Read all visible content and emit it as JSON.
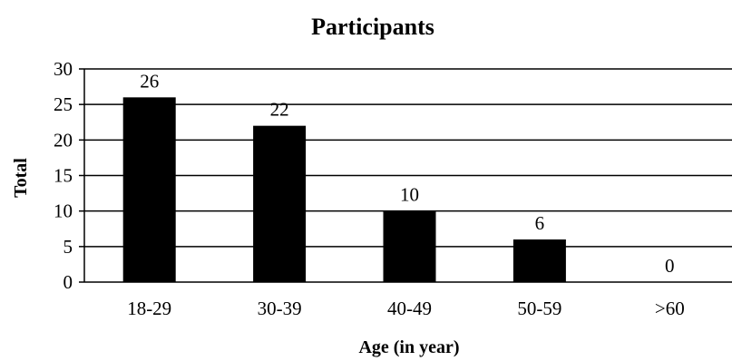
{
  "chart_data": {
    "type": "bar",
    "title": "Participants",
    "xlabel": "Age (in year)",
    "ylabel": "Total",
    "categories": [
      "18-29",
      "30-39",
      "40-49",
      "50-59",
      ">60"
    ],
    "values": [
      26,
      22,
      10,
      6,
      0
    ],
    "ylim": [
      0,
      30
    ],
    "yticks": [
      0,
      5,
      10,
      15,
      20,
      25,
      30
    ],
    "grid": true,
    "legend": "none",
    "data_labels": true,
    "bar_color": "#000000"
  }
}
